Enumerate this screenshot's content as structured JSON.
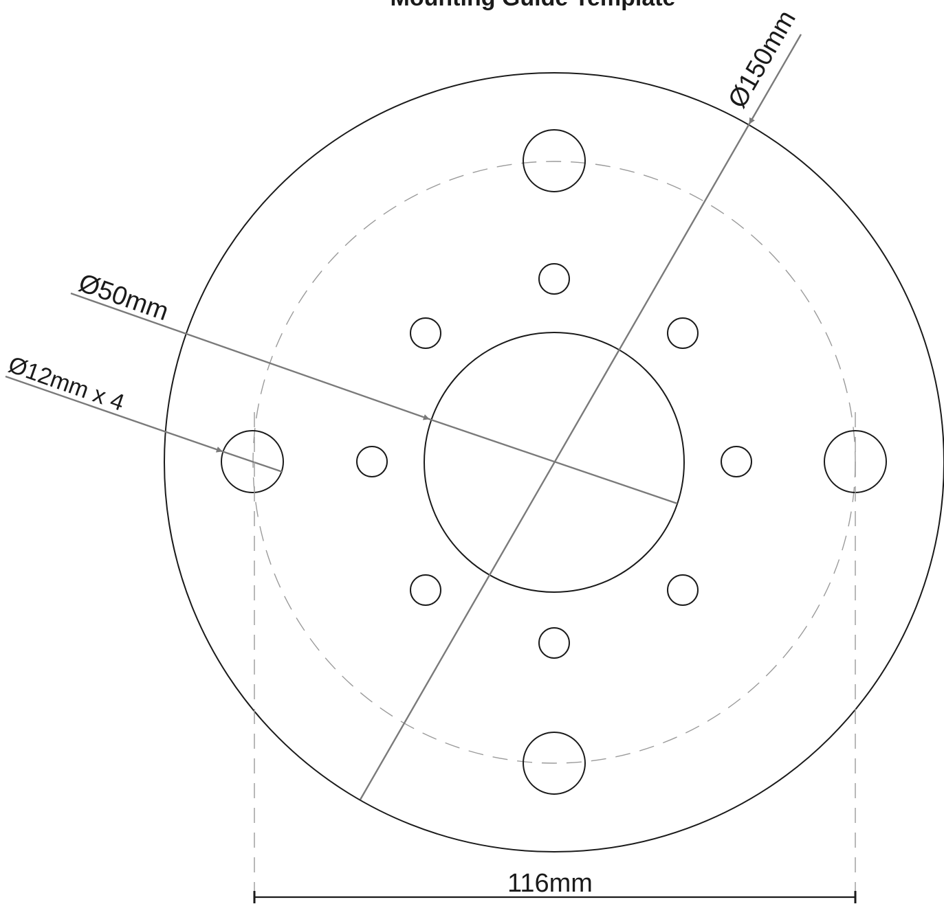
{
  "title": "Mounting Guide Template",
  "dimensions": {
    "outer_diameter": "Ø150mm",
    "center_hole": "Ø50mm",
    "mount_holes": "Ø12mm x 4",
    "hole_spacing": "116mm"
  },
  "colors": {
    "ink": "#1a1a1a",
    "dimension_line": "#7a7a7a",
    "construction_circle": "#9a9a9a"
  }
}
